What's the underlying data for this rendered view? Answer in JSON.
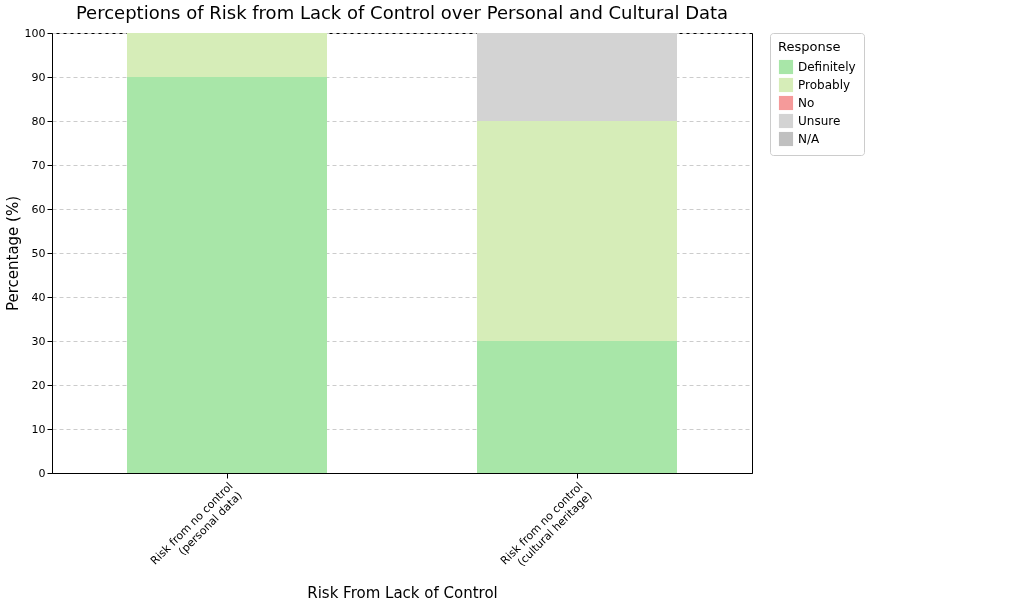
{
  "chart_data": {
    "type": "bar",
    "stacked": true,
    "title": "Perceptions of Risk from Lack of Control over Personal and Cultural Data",
    "xlabel": "Risk From Lack of Control",
    "ylabel": "Percentage (%)",
    "legend_title": "Response",
    "categories": [
      "Risk from no control\n(personal data)",
      "Risk from no control\n(cultural heritage)"
    ],
    "series": [
      {
        "name": "Definitely",
        "color": "#a8e6a8",
        "values": [
          90,
          30
        ]
      },
      {
        "name": "Probably",
        "color": "#d6edb8",
        "values": [
          10,
          50
        ]
      },
      {
        "name": "No",
        "color": "#f59a9a",
        "values": [
          0,
          0
        ]
      },
      {
        "name": "Unsure",
        "color": "#d3d3d3",
        "values": [
          0,
          20
        ]
      },
      {
        "name": "N/A",
        "color": "#c0c0c0",
        "values": [
          0,
          0
        ]
      }
    ],
    "ylim": [
      0,
      100
    ],
    "yticks": [
      0,
      10,
      20,
      30,
      40,
      50,
      60,
      70,
      80,
      90,
      100
    ],
    "grid": "y",
    "legend": "top right"
  }
}
